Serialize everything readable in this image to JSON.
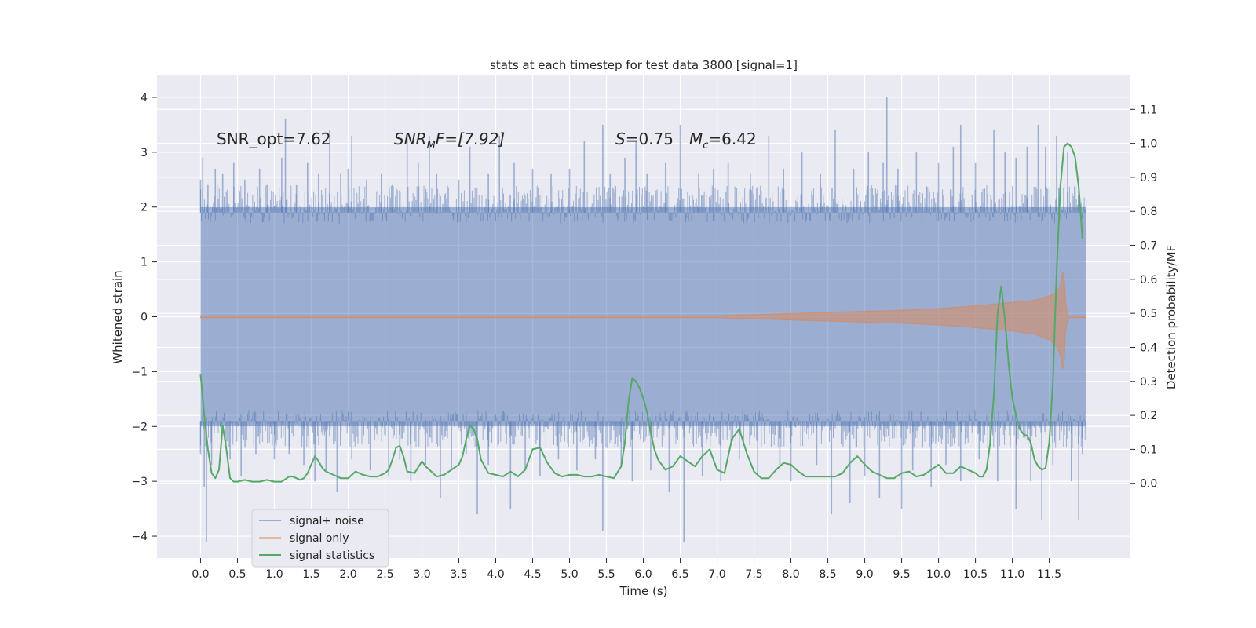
{
  "chart_data": {
    "type": "line",
    "title": "stats at each timestep for test data 3800 [signal=1]",
    "xlabel": "Time (s)",
    "ylabel": "Whitened strain",
    "y2label": "Detection probability/MF",
    "xlim": [
      -0.59,
      12.6
    ],
    "ylim": [
      -4.4,
      4.4
    ],
    "y2lim": [
      -0.22,
      1.2
    ],
    "grid": true,
    "background": "#eaeaf2",
    "x_ticks": [
      "0.0",
      "0.5",
      "1.0",
      "1.5",
      "2.0",
      "2.5",
      "3.0",
      "3.5",
      "4.0",
      "4.5",
      "5.0",
      "5.5",
      "6.0",
      "6.5",
      "7.0",
      "7.5",
      "8.0",
      "8.5",
      "9.0",
      "9.5",
      "10.0",
      "10.5",
      "11.0",
      "11.5"
    ],
    "y_ticks": [
      "4",
      "3",
      "2",
      "1",
      "0",
      "−1",
      "−2",
      "−3",
      "−4"
    ],
    "y2_ticks": [
      "1.1",
      "1.0",
      "0.9",
      "0.8",
      "0.7",
      "0.6",
      "0.5",
      "0.4",
      "0.3",
      "0.2",
      "0.1",
      "0.0"
    ],
    "legend": {
      "placement": "lower-left",
      "entries": [
        "signal+ noise",
        "signal only",
        "signal statistics"
      ]
    },
    "annotations": {
      "snr_opt": "SNR_opt=7.62",
      "snr_mf_main": "SNR",
      "snr_mf_sub": "M",
      "snr_mf_rest": "F=[7.92]",
      "s_main": "S",
      "s_rest": "=0.75",
      "mc_main": "M",
      "mc_sub": "c",
      "mc_rest": "=6.42"
    },
    "series": [
      {
        "name": "signal+ noise",
        "axis": "left",
        "color": "#4c72b0",
        "opacity": 0.5,
        "t_range": [
          0,
          12
        ],
        "band": [
          -2.0,
          2.0
        ],
        "spikes_up": [
          [
            0.0,
            2.5
          ],
          [
            0.03,
            2.9
          ],
          [
            0.1,
            2.4
          ],
          [
            0.2,
            2.7
          ],
          [
            0.3,
            2.6
          ],
          [
            0.45,
            2.8
          ],
          [
            0.6,
            2.5
          ],
          [
            0.8,
            2.7
          ],
          [
            0.9,
            2.4
          ],
          [
            1.1,
            2.9
          ],
          [
            1.15,
            3.6
          ],
          [
            1.3,
            2.4
          ],
          [
            1.45,
            2.8
          ],
          [
            1.6,
            2.6
          ],
          [
            1.75,
            3.4
          ],
          [
            1.9,
            2.6
          ],
          [
            2.0,
            2.7
          ],
          [
            2.05,
            3.3
          ],
          [
            2.25,
            2.5
          ],
          [
            2.45,
            2.6
          ],
          [
            2.6,
            2.4
          ],
          [
            2.8,
            3.3
          ],
          [
            2.95,
            2.8
          ],
          [
            3.1,
            3.3
          ],
          [
            3.2,
            2.6
          ],
          [
            3.5,
            2.5
          ],
          [
            3.65,
            3.1
          ],
          [
            3.9,
            2.6
          ],
          [
            4.05,
            3.3
          ],
          [
            4.25,
            2.8
          ],
          [
            4.5,
            2.7
          ],
          [
            4.75,
            2.6
          ],
          [
            5.0,
            2.7
          ],
          [
            5.2,
            3.2
          ],
          [
            5.45,
            3.5
          ],
          [
            5.55,
            2.6
          ],
          [
            5.75,
            2.9
          ],
          [
            5.9,
            3.2
          ],
          [
            6.05,
            2.6
          ],
          [
            6.3,
            2.8
          ],
          [
            6.5,
            3.5
          ],
          [
            6.75,
            2.6
          ],
          [
            6.95,
            2.7
          ],
          [
            7.15,
            2.8
          ],
          [
            7.45,
            2.6
          ],
          [
            7.7,
            3.3
          ],
          [
            7.9,
            2.7
          ],
          [
            8.15,
            3.0
          ],
          [
            8.4,
            2.6
          ],
          [
            8.6,
            3.4
          ],
          [
            8.85,
            2.7
          ],
          [
            9.05,
            3.0
          ],
          [
            9.25,
            2.8
          ],
          [
            9.3,
            4.0
          ],
          [
            9.45,
            2.7
          ],
          [
            9.7,
            3.0
          ],
          [
            10.0,
            2.8
          ],
          [
            10.2,
            3.1
          ],
          [
            10.3,
            3.5
          ],
          [
            10.5,
            2.8
          ],
          [
            10.75,
            3.4
          ],
          [
            10.9,
            3.0
          ],
          [
            11.05,
            2.9
          ],
          [
            11.2,
            3.1
          ],
          [
            11.35,
            3.5
          ],
          [
            11.45,
            3.1
          ],
          [
            11.6,
            3.3
          ],
          [
            11.75,
            3.0
          ],
          [
            11.9,
            2.5
          ]
        ],
        "spikes_down": [
          [
            0.0,
            -2.5
          ],
          [
            0.05,
            -3.1
          ],
          [
            0.08,
            -4.1
          ],
          [
            0.15,
            -2.7
          ],
          [
            0.4,
            -2.6
          ],
          [
            0.55,
            -2.9
          ],
          [
            0.75,
            -2.5
          ],
          [
            1.0,
            -2.6
          ],
          [
            1.2,
            -2.5
          ],
          [
            1.4,
            -2.7
          ],
          [
            1.55,
            -3.0
          ],
          [
            1.7,
            -2.8
          ],
          [
            1.85,
            -3.2
          ],
          [
            2.05,
            -2.6
          ],
          [
            2.3,
            -2.8
          ],
          [
            2.55,
            -2.9
          ],
          [
            2.7,
            -2.6
          ],
          [
            2.85,
            -3.0
          ],
          [
            3.05,
            -2.7
          ],
          [
            3.25,
            -3.3
          ],
          [
            3.4,
            -2.8
          ],
          [
            3.6,
            -2.5
          ],
          [
            3.75,
            -3.6
          ],
          [
            3.9,
            -2.7
          ],
          [
            4.2,
            -3.5
          ],
          [
            4.4,
            -2.8
          ],
          [
            4.6,
            -2.9
          ],
          [
            4.85,
            -2.6
          ],
          [
            5.1,
            -2.8
          ],
          [
            5.35,
            -2.6
          ],
          [
            5.45,
            -3.9
          ],
          [
            5.7,
            -2.7
          ],
          [
            5.85,
            -3.0
          ],
          [
            6.1,
            -2.8
          ],
          [
            6.35,
            -3.2
          ],
          [
            6.55,
            -4.1
          ],
          [
            6.8,
            -2.9
          ],
          [
            7.05,
            -3.0
          ],
          [
            7.3,
            -2.6
          ],
          [
            7.55,
            -2.9
          ],
          [
            7.85,
            -2.7
          ],
          [
            8.0,
            -3.0
          ],
          [
            8.35,
            -2.7
          ],
          [
            8.55,
            -3.6
          ],
          [
            8.8,
            -3.4
          ],
          [
            9.0,
            -2.9
          ],
          [
            9.2,
            -3.3
          ],
          [
            9.5,
            -3.5
          ],
          [
            9.65,
            -2.8
          ],
          [
            9.9,
            -3.1
          ],
          [
            10.1,
            -2.7
          ],
          [
            10.3,
            -3.0
          ],
          [
            10.55,
            -2.6
          ],
          [
            10.8,
            -3.0
          ],
          [
            11.05,
            -3.5
          ],
          [
            11.25,
            -3.0
          ],
          [
            11.4,
            -3.7
          ],
          [
            11.55,
            -2.7
          ],
          [
            11.8,
            -3.0
          ],
          [
            11.9,
            -3.7
          ],
          [
            11.95,
            -2.5
          ]
        ]
      },
      {
        "name": "signal only",
        "axis": "left",
        "color": "#dd8452",
        "opacity": 0.5,
        "env_t": [
          0,
          7.0,
          7.5,
          8.0,
          8.5,
          9.0,
          9.5,
          10.0,
          10.5,
          11.0,
          11.3,
          11.5,
          11.6,
          11.65,
          11.68,
          11.7,
          11.72,
          11.75,
          12.0
        ],
        "env_upper": [
          0.02,
          0.02,
          0.04,
          0.06,
          0.08,
          0.1,
          0.12,
          0.15,
          0.2,
          0.26,
          0.3,
          0.38,
          0.45,
          0.55,
          0.8,
          0.8,
          0.3,
          0.02,
          0.02
        ],
        "env_lower": [
          -0.02,
          -0.02,
          -0.04,
          -0.06,
          -0.08,
          -0.1,
          -0.12,
          -0.15,
          -0.2,
          -0.26,
          -0.32,
          -0.42,
          -0.55,
          -0.7,
          -0.95,
          -0.9,
          -0.3,
          -0.02,
          -0.02
        ]
      },
      {
        "name": "signal statistics",
        "axis": "right",
        "color": "#55a868",
        "x": [
          0.0,
          0.05,
          0.1,
          0.15,
          0.2,
          0.25,
          0.3,
          0.35,
          0.4,
          0.45,
          0.5,
          0.6,
          0.7,
          0.8,
          0.9,
          1.0,
          1.1,
          1.2,
          1.25,
          1.3,
          1.35,
          1.4,
          1.45,
          1.5,
          1.55,
          1.6,
          1.65,
          1.7,
          1.8,
          1.9,
          2.0,
          2.1,
          2.2,
          2.3,
          2.4,
          2.5,
          2.55,
          2.6,
          2.65,
          2.7,
          2.75,
          2.8,
          2.9,
          3.0,
          3.05,
          3.1,
          3.2,
          3.3,
          3.4,
          3.5,
          3.55,
          3.6,
          3.65,
          3.7,
          3.75,
          3.8,
          3.9,
          4.0,
          4.1,
          4.2,
          4.3,
          4.4,
          4.5,
          4.6,
          4.7,
          4.8,
          4.9,
          5.0,
          5.1,
          5.2,
          5.3,
          5.4,
          5.5,
          5.6,
          5.7,
          5.75,
          5.8,
          5.85,
          5.9,
          5.95,
          6.0,
          6.05,
          6.1,
          6.15,
          6.2,
          6.3,
          6.4,
          6.5,
          6.6,
          6.7,
          6.8,
          6.9,
          7.0,
          7.1,
          7.2,
          7.3,
          7.4,
          7.5,
          7.6,
          7.7,
          7.8,
          7.9,
          8.0,
          8.1,
          8.2,
          8.3,
          8.4,
          8.5,
          8.6,
          8.7,
          8.8,
          8.9,
          9.0,
          9.1,
          9.2,
          9.3,
          9.4,
          9.5,
          9.6,
          9.7,
          9.8,
          9.9,
          10.0,
          10.1,
          10.2,
          10.3,
          10.4,
          10.5,
          10.55,
          10.6,
          10.65,
          10.7,
          10.75,
          10.8,
          10.85,
          10.9,
          10.95,
          11.0,
          11.05,
          11.1,
          11.15,
          11.2,
          11.25,
          11.3,
          11.35,
          11.4,
          11.45,
          11.5,
          11.55,
          11.6,
          11.65,
          11.7,
          11.75,
          11.8,
          11.85,
          11.9,
          11.95
        ],
        "y": [
          0.32,
          0.2,
          0.1,
          0.03,
          0.015,
          0.04,
          0.17,
          0.1,
          0.015,
          0.005,
          0.005,
          0.01,
          0.005,
          0.005,
          0.01,
          0.005,
          0.005,
          0.02,
          0.02,
          0.015,
          0.01,
          0.015,
          0.03,
          0.055,
          0.08,
          0.065,
          0.045,
          0.035,
          0.025,
          0.015,
          0.015,
          0.035,
          0.025,
          0.02,
          0.02,
          0.03,
          0.04,
          0.07,
          0.105,
          0.11,
          0.08,
          0.035,
          0.03,
          0.065,
          0.05,
          0.04,
          0.02,
          0.025,
          0.04,
          0.055,
          0.08,
          0.13,
          0.17,
          0.16,
          0.13,
          0.07,
          0.03,
          0.025,
          0.02,
          0.035,
          0.02,
          0.04,
          0.1,
          0.105,
          0.06,
          0.03,
          0.02,
          0.025,
          0.025,
          0.02,
          0.02,
          0.025,
          0.02,
          0.015,
          0.05,
          0.12,
          0.24,
          0.31,
          0.3,
          0.28,
          0.25,
          0.21,
          0.15,
          0.1,
          0.07,
          0.04,
          0.05,
          0.08,
          0.065,
          0.05,
          0.08,
          0.1,
          0.04,
          0.03,
          0.13,
          0.16,
          0.09,
          0.035,
          0.015,
          0.015,
          0.04,
          0.06,
          0.055,
          0.035,
          0.02,
          0.02,
          0.02,
          0.02,
          0.02,
          0.03,
          0.06,
          0.08,
          0.055,
          0.035,
          0.025,
          0.015,
          0.015,
          0.03,
          0.035,
          0.02,
          0.025,
          0.04,
          0.055,
          0.03,
          0.03,
          0.05,
          0.04,
          0.03,
          0.02,
          0.02,
          0.04,
          0.12,
          0.26,
          0.5,
          0.58,
          0.48,
          0.35,
          0.25,
          0.2,
          0.16,
          0.145,
          0.14,
          0.12,
          0.07,
          0.05,
          0.04,
          0.045,
          0.12,
          0.3,
          0.62,
          0.87,
          0.99,
          1.0,
          0.99,
          0.96,
          0.87,
          0.72
        ]
      }
    ]
  }
}
